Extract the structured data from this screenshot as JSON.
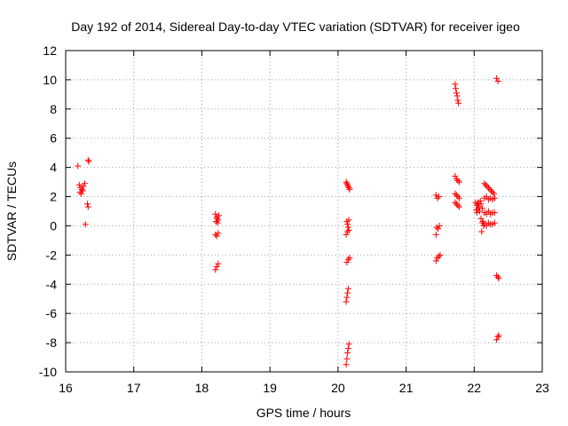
{
  "chart_data": {
    "type": "scatter",
    "title": "Day 192 of 2014, Sidereal Day-to-day VTEC variation (SDTVAR) for receiver igeo",
    "xlabel": "GPS time / hours",
    "ylabel": "SDTVAR / TECUs",
    "xlim": [
      16,
      23
    ],
    "ylim": [
      -10,
      12
    ],
    "xticks": [
      16,
      17,
      18,
      19,
      20,
      21,
      22,
      23
    ],
    "yticks": [
      -10,
      -8,
      -6,
      -4,
      -2,
      0,
      2,
      4,
      6,
      8,
      10,
      12
    ],
    "grid": true,
    "marker": "+",
    "marker_color": "#ff0000",
    "points": [
      [
        16.18,
        4.1
      ],
      [
        16.33,
        4.5
      ],
      [
        16.34,
        4.4
      ],
      [
        16.2,
        2.8
      ],
      [
        16.22,
        2.6
      ],
      [
        16.24,
        2.5
      ],
      [
        16.21,
        2.3
      ],
      [
        16.26,
        2.7
      ],
      [
        16.28,
        2.9
      ],
      [
        16.23,
        2.2
      ],
      [
        16.25,
        2.4
      ],
      [
        16.32,
        1.5
      ],
      [
        16.33,
        1.3
      ],
      [
        16.29,
        0.1
      ],
      [
        18.2,
        0.8
      ],
      [
        18.22,
        0.6
      ],
      [
        18.24,
        0.4
      ],
      [
        18.21,
        0.3
      ],
      [
        18.23,
        0.2
      ],
      [
        18.25,
        0.7
      ],
      [
        18.22,
        0.5
      ],
      [
        18.2,
        -0.6
      ],
      [
        18.22,
        -0.7
      ],
      [
        18.24,
        -0.5
      ],
      [
        18.2,
        -3.0
      ],
      [
        18.22,
        -2.8
      ],
      [
        18.24,
        -2.6
      ],
      [
        20.12,
        3.0
      ],
      [
        20.13,
        2.9
      ],
      [
        20.14,
        2.8
      ],
      [
        20.15,
        2.7
      ],
      [
        20.16,
        2.6
      ],
      [
        20.17,
        2.5
      ],
      [
        20.13,
        0.3
      ],
      [
        20.14,
        0.1
      ],
      [
        20.15,
        -0.1
      ],
      [
        20.16,
        0.4
      ],
      [
        20.12,
        -0.6
      ],
      [
        20.14,
        -0.4
      ],
      [
        20.16,
        -0.3
      ],
      [
        20.13,
        -2.5
      ],
      [
        20.15,
        -2.3
      ],
      [
        20.17,
        -2.2
      ],
      [
        20.12,
        -5.2
      ],
      [
        20.13,
        -4.9
      ],
      [
        20.14,
        -4.6
      ],
      [
        20.15,
        -4.3
      ],
      [
        20.12,
        -9.5
      ],
      [
        20.13,
        -9.1
      ],
      [
        20.14,
        -8.7
      ],
      [
        20.15,
        -8.4
      ],
      [
        20.16,
        -8.1
      ],
      [
        21.44,
        2.1
      ],
      [
        21.46,
        1.9
      ],
      [
        21.48,
        2.0
      ],
      [
        21.45,
        -0.1
      ],
      [
        21.47,
        -0.2
      ],
      [
        21.49,
        0.0
      ],
      [
        21.44,
        -0.6
      ],
      [
        21.44,
        -2.4
      ],
      [
        21.46,
        -2.2
      ],
      [
        21.48,
        -2.1
      ],
      [
        21.5,
        -2.0
      ],
      [
        21.72,
        9.7
      ],
      [
        21.73,
        9.4
      ],
      [
        21.74,
        9.1
      ],
      [
        21.75,
        8.9
      ],
      [
        21.76,
        8.6
      ],
      [
        21.77,
        8.4
      ],
      [
        21.72,
        3.4
      ],
      [
        21.74,
        3.2
      ],
      [
        21.76,
        3.1
      ],
      [
        21.78,
        3.0
      ],
      [
        21.72,
        2.2
      ],
      [
        21.74,
        2.1
      ],
      [
        21.76,
        2.0
      ],
      [
        21.78,
        1.9
      ],
      [
        21.72,
        1.6
      ],
      [
        21.74,
        1.5
      ],
      [
        21.76,
        1.4
      ],
      [
        21.78,
        1.3
      ],
      [
        22.02,
        1.6
      ],
      [
        22.04,
        1.4
      ],
      [
        22.06,
        1.2
      ],
      [
        22.08,
        1.0
      ],
      [
        22.03,
        1.1
      ],
      [
        22.05,
        1.5
      ],
      [
        22.07,
        1.3
      ],
      [
        22.09,
        1.7
      ],
      [
        22.1,
        1.5
      ],
      [
        22.12,
        1.2
      ],
      [
        22.04,
        0.9
      ],
      [
        22.06,
        1.6
      ],
      [
        22.1,
        0.5
      ],
      [
        22.12,
        0.2
      ],
      [
        22.14,
        0.0
      ],
      [
        22.11,
        -0.4
      ],
      [
        22.13,
        0.3
      ],
      [
        22.15,
        2.9
      ],
      [
        22.17,
        2.8
      ],
      [
        22.19,
        2.7
      ],
      [
        22.21,
        2.6
      ],
      [
        22.23,
        2.5
      ],
      [
        22.25,
        2.4
      ],
      [
        22.27,
        2.3
      ],
      [
        22.29,
        2.2
      ],
      [
        22.15,
        1.9
      ],
      [
        22.18,
        2.0
      ],
      [
        22.21,
        1.8
      ],
      [
        22.24,
        1.9
      ],
      [
        22.27,
        1.8
      ],
      [
        22.3,
        1.9
      ],
      [
        22.15,
        0.9
      ],
      [
        22.18,
        0.8
      ],
      [
        22.21,
        1.0
      ],
      [
        22.24,
        0.8
      ],
      [
        22.27,
        0.9
      ],
      [
        22.3,
        0.9
      ],
      [
        22.15,
        0.1
      ],
      [
        22.18,
        0.0
      ],
      [
        22.21,
        0.2
      ],
      [
        22.24,
        0.1
      ],
      [
        22.27,
        0.1
      ],
      [
        22.3,
        0.2
      ],
      [
        22.33,
        10.1
      ],
      [
        22.35,
        9.9
      ],
      [
        22.33,
        -3.4
      ],
      [
        22.35,
        -3.5
      ],
      [
        22.36,
        -3.6
      ],
      [
        22.33,
        -7.8
      ],
      [
        22.35,
        -7.6
      ],
      [
        22.36,
        -7.5
      ]
    ]
  }
}
